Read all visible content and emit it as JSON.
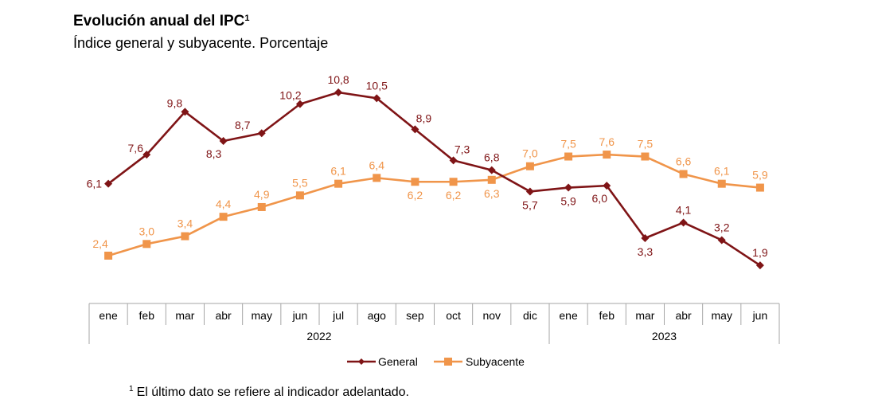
{
  "header": {
    "title": "Evolución anual del IPC",
    "title_superscript": "1",
    "subtitle": "Índice general y subyacente. Porcentaje"
  },
  "footnote": {
    "marker": "1",
    "text": "El último dato se refiere al indicador adelantado."
  },
  "chart_data": {
    "type": "line",
    "title": "Evolución anual del IPC",
    "subtitle": "Índice general y subyacente. Porcentaje",
    "xlabel": "",
    "ylabel": "",
    "x": [
      "ene",
      "feb",
      "mar",
      "abr",
      "may",
      "jun",
      "jul",
      "ago",
      "sep",
      "oct",
      "nov",
      "dic",
      "ene",
      "feb",
      "mar",
      "abr",
      "may",
      "jun"
    ],
    "year_groups": [
      {
        "label": "2022",
        "count": 12
      },
      {
        "label": "2023",
        "count": 6
      }
    ],
    "series": [
      {
        "name": "General",
        "color": "#7f1416",
        "marker": "diamond",
        "values": [
          6.1,
          7.6,
          9.8,
          8.3,
          8.7,
          10.2,
          10.8,
          10.5,
          8.9,
          7.3,
          6.8,
          5.7,
          5.9,
          6.0,
          3.3,
          4.1,
          3.2,
          1.9
        ],
        "labels": [
          "6,1",
          "7,6",
          "9,8",
          "8,3",
          "8,7",
          "10,2",
          "10,8",
          "10,5",
          "8,9",
          "7,3",
          "6,8",
          "5,7",
          "5,9",
          "6,0",
          "3,3",
          "4,1",
          "3,2",
          "1,9"
        ],
        "label_positions": [
          "left",
          "above-left",
          "above-left",
          "below-left",
          "above-left",
          "above-left",
          "above",
          "above",
          "above",
          "above",
          "above",
          "below",
          "below",
          "below-left",
          "below",
          "above",
          "above",
          "above"
        ]
      },
      {
        "name": "Subyacente",
        "color": "#f0954a",
        "marker": "square",
        "values": [
          2.4,
          3.0,
          3.4,
          4.4,
          4.9,
          5.5,
          6.1,
          6.4,
          6.2,
          6.2,
          6.3,
          7.0,
          7.5,
          7.6,
          7.5,
          6.6,
          6.1,
          5.9
        ],
        "labels": [
          "2,4",
          "3,0",
          "3,4",
          "4,4",
          "4,9",
          "5,5",
          "6,1",
          "6,4",
          "6,2",
          "6,2",
          "6,3",
          "7,0",
          "7,5",
          "7,6",
          "7,5",
          "6,6",
          "6,1",
          "5,9"
        ],
        "label_positions": [
          "above-left",
          "above",
          "above",
          "above",
          "above",
          "above",
          "above",
          "above",
          "below",
          "below",
          "below",
          "above",
          "above",
          "above",
          "above",
          "above",
          "above",
          "above"
        ]
      }
    ],
    "ylim": [
      0,
      11
    ],
    "grid": false,
    "legend": {
      "position": "bottom",
      "entries": [
        "General",
        "Subyacente"
      ]
    }
  }
}
